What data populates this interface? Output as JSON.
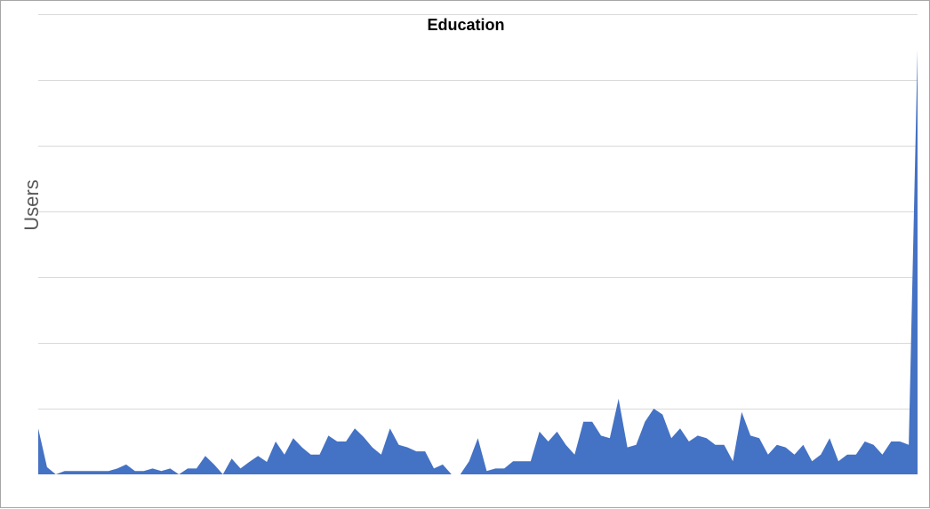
{
  "chart_data": {
    "type": "area",
    "title": "Education",
    "xlabel": "",
    "ylabel": "Users",
    "ylim": [
      0,
      7
    ],
    "grid": true,
    "legend": "none",
    "series": [
      {
        "values": [
          0.7,
          0.11,
          0,
          0.05,
          0.05,
          0.05,
          0.05,
          0.05,
          0.05,
          0.09,
          0.15,
          0.05,
          0.05,
          0.09,
          0.05,
          0.09,
          0,
          0.09,
          0.09,
          0.28,
          0.15,
          0,
          0.24,
          0.09,
          0.19,
          0.28,
          0.19,
          0.5,
          0.3,
          0.55,
          0.41,
          0.3,
          0.3,
          0.59,
          0.5,
          0.5,
          0.7,
          0.57,
          0.41,
          0.3,
          0.7,
          0.45,
          0.41,
          0.35,
          0.35,
          0.09,
          0.15,
          0,
          0,
          0.2,
          0.55,
          0.05,
          0.09,
          0.09,
          0.2,
          0.2,
          0.2,
          0.65,
          0.5,
          0.65,
          0.45,
          0.3,
          0.8,
          0.8,
          0.59,
          0.55,
          1.15,
          0.41,
          0.45,
          0.8,
          1.0,
          0.91,
          0.55,
          0.7,
          0.5,
          0.59,
          0.55,
          0.45,
          0.45,
          0.2,
          0.95,
          0.59,
          0.55,
          0.3,
          0.45,
          0.41,
          0.3,
          0.45,
          0.2,
          0.3,
          0.55,
          0.2,
          0.3,
          0.3,
          0.5,
          0.45,
          0.3,
          0.5,
          0.5,
          0.45,
          6.46
        ]
      }
    ]
  },
  "colors": {
    "series_fill": "#4472C4",
    "gridline": "#d9d9d9",
    "title": "#000000",
    "axis_label": "#595959",
    "frame_border": "#a6a6a6"
  }
}
